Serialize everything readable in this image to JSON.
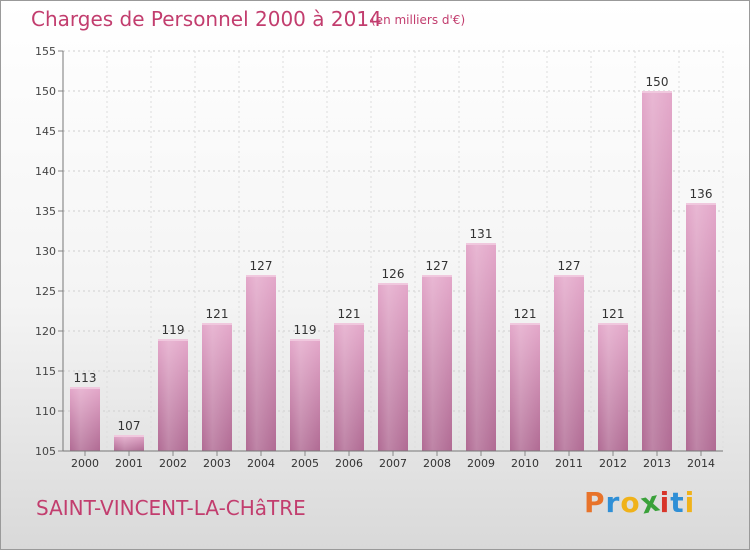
{
  "chart_data": {
    "type": "bar",
    "title": "Charges de Personnel 2000 à 2014",
    "subtitle": "(en milliers d'€)",
    "categories": [
      "2000",
      "2001",
      "2002",
      "2003",
      "2004",
      "2005",
      "2006",
      "2007",
      "2008",
      "2009",
      "2010",
      "2011",
      "2012",
      "2013",
      "2014"
    ],
    "values": [
      113,
      107,
      119,
      121,
      127,
      119,
      121,
      126,
      127,
      131,
      121,
      127,
      121,
      150,
      136
    ],
    "ylim": [
      105,
      155
    ],
    "yticks": [
      105,
      110,
      115,
      120,
      125,
      130,
      135,
      140,
      145,
      150,
      155
    ],
    "grid": true,
    "bar_color": "#d48fb6"
  },
  "footer": {
    "commune": "SAINT-VINCENT-LA-CHâTRE"
  },
  "logo": {
    "text": "Proxiti",
    "letters": [
      "P",
      "r",
      "o",
      "x",
      "i",
      "t",
      "i"
    ],
    "colors": [
      "#e8732a",
      "#2f8fd6",
      "#f0b21a",
      "#3aa13a",
      "#d8352a",
      "#2f8fd6",
      "#f0b21a"
    ]
  }
}
